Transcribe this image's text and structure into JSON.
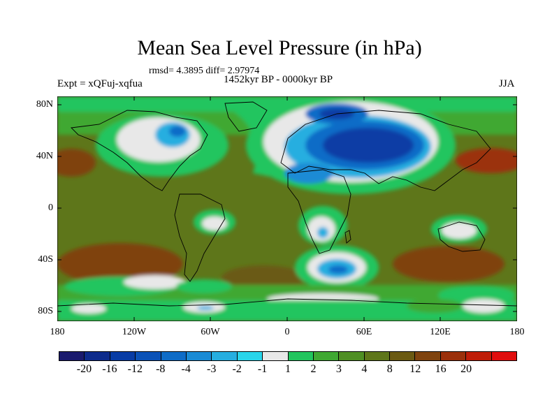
{
  "title": "Mean Sea Level Pressure (in hPa)",
  "stats": "rmsd= 4.3895 diff= 2.97974",
  "experiment": "Expt = xQFuj-xqfua",
  "period": "1452kyr BP - 0000kyr BP",
  "season": "JJA",
  "map": {
    "x_ticks": [
      "180",
      "120W",
      "60W",
      "0",
      "60E",
      "120E",
      "180"
    ],
    "y_ticks": [
      "80N",
      "40N",
      "0",
      "40S",
      "80S"
    ]
  },
  "colorbar": {
    "colors": [
      "#1a1a6e",
      "#0d2b8c",
      "#083ca5",
      "#0b52b7",
      "#0e6cc7",
      "#1a8bd5",
      "#26aee0",
      "#29d5ea",
      "#e8e8e8",
      "#22c55e",
      "#3fa832",
      "#4f8f24",
      "#5e761a",
      "#6b5a12",
      "#7f430e",
      "#9b300b",
      "#bf1d08",
      "#e00d0d"
    ],
    "labels": [
      "-20",
      "-16",
      "-12",
      "-8",
      "-4",
      "-3",
      "-2",
      "-1",
      "1",
      "2",
      "3",
      "4",
      "8",
      "12",
      "16",
      "20"
    ]
  }
}
